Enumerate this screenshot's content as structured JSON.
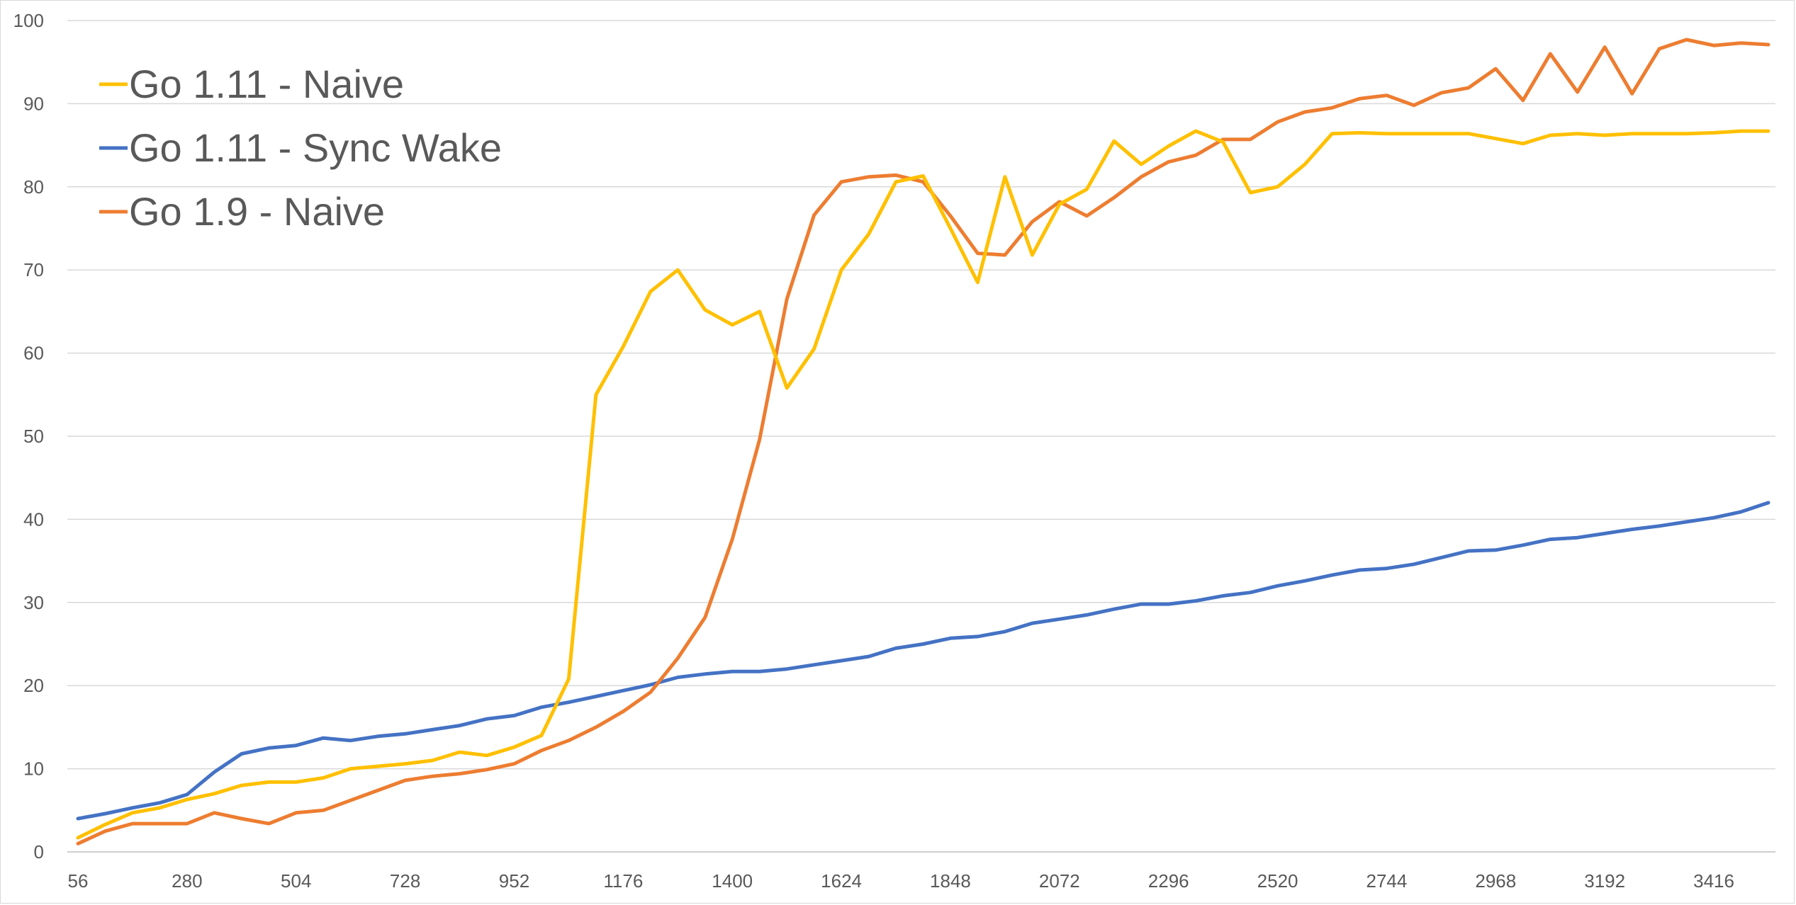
{
  "chart_data": {
    "type": "line",
    "title": "",
    "xlabel": "",
    "ylabel": "",
    "ylim": [
      0,
      100
    ],
    "yticks": [
      0,
      10,
      20,
      30,
      40,
      50,
      60,
      70,
      80,
      90,
      100
    ],
    "x_tick_labels": [
      "56",
      "280",
      "504",
      "728",
      "952",
      "1176",
      "1400",
      "1624",
      "1848",
      "2072",
      "2296",
      "2520",
      "2744",
      "2968",
      "3192",
      "3416"
    ],
    "x": [
      56,
      112,
      168,
      224,
      280,
      336,
      392,
      448,
      504,
      560,
      616,
      672,
      728,
      784,
      840,
      896,
      952,
      1008,
      1064,
      1120,
      1176,
      1232,
      1288,
      1344,
      1400,
      1456,
      1512,
      1568,
      1624,
      1680,
      1736,
      1792,
      1848,
      1904,
      1960,
      2016,
      2072,
      2128,
      2184,
      2240,
      2296,
      2352,
      2408,
      2464,
      2520,
      2576,
      2632,
      2688,
      2744,
      2800,
      2856,
      2912,
      2968,
      3024,
      3080,
      3136,
      3192,
      3248,
      3304,
      3360,
      3416,
      3472,
      3528
    ],
    "grid": true,
    "legend_position": "top-left",
    "series": [
      {
        "name": "Go 1.11 - Naive",
        "color": "#FFC000",
        "values": [
          1.7,
          3.3,
          4.7,
          5.3,
          6.3,
          7.0,
          8.0,
          8.4,
          8.4,
          8.9,
          10.0,
          10.3,
          10.6,
          11.0,
          12.0,
          11.6,
          12.6,
          14.0,
          20.8,
          55.0,
          60.8,
          67.4,
          70.0,
          65.2,
          63.4,
          65.0,
          55.8,
          60.5,
          70.0,
          74.3,
          80.6,
          81.3,
          75.0,
          68.5,
          81.2,
          71.8,
          77.9,
          79.7,
          85.5,
          82.7,
          84.9,
          86.7,
          85.4,
          79.3,
          80.0,
          82.7,
          86.4,
          86.5,
          86.4,
          86.4,
          86.4,
          86.4,
          85.8,
          85.2,
          86.2,
          86.4,
          86.2,
          86.4,
          86.4,
          86.4,
          86.5,
          86.7,
          86.7
        ]
      },
      {
        "name": "Go 1.11 - Sync Wake",
        "color": "#4472C4",
        "values": [
          4.0,
          4.6,
          5.3,
          5.9,
          6.9,
          9.6,
          11.8,
          12.5,
          12.8,
          13.7,
          13.4,
          13.9,
          14.2,
          14.7,
          15.2,
          16.0,
          16.4,
          17.4,
          18.0,
          18.7,
          19.4,
          20.1,
          21.0,
          21.4,
          21.7,
          21.7,
          22.0,
          22.5,
          23.0,
          23.5,
          24.5,
          25.0,
          25.7,
          25.9,
          26.5,
          27.5,
          28.0,
          28.5,
          29.2,
          29.8,
          29.8,
          30.2,
          30.8,
          31.2,
          32.0,
          32.6,
          33.3,
          33.9,
          34.1,
          34.6,
          35.4,
          36.2,
          36.3,
          36.9,
          37.6,
          37.8,
          38.3,
          38.8,
          39.2,
          39.7,
          40.2,
          40.9,
          42.0
        ]
      },
      {
        "name": "Go 1.9 - Naive",
        "color": "#ED7D31",
        "values": [
          1.0,
          2.5,
          3.4,
          3.4,
          3.4,
          4.7,
          4.0,
          3.4,
          4.7,
          5.0,
          6.2,
          7.4,
          8.6,
          9.1,
          9.4,
          9.9,
          10.6,
          12.2,
          13.4,
          15.0,
          16.9,
          19.2,
          23.3,
          28.2,
          37.6,
          49.6,
          66.5,
          76.6,
          80.6,
          81.2,
          81.4,
          80.6,
          76.5,
          72.0,
          71.8,
          75.8,
          78.2,
          76.5,
          78.7,
          81.2,
          83.0,
          83.8,
          85.7,
          85.7,
          87.8,
          89.0,
          89.5,
          90.6,
          91.0,
          89.8,
          91.3,
          91.9,
          94.2,
          90.4,
          96.0,
          91.4,
          96.8,
          91.2,
          96.6,
          97.7,
          97.0,
          97.3,
          97.1
        ]
      }
    ]
  }
}
